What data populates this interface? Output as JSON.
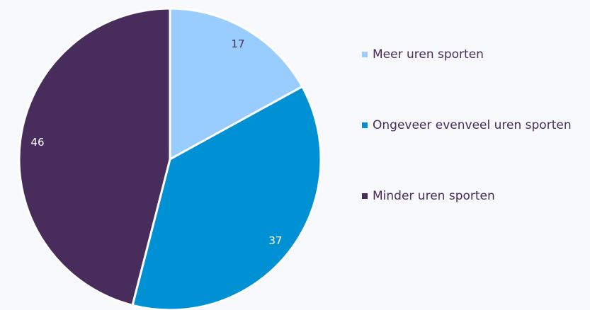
{
  "chart_data": {
    "type": "pie",
    "categories": [
      "Meer uren sporten",
      "Ongeveer evenveel uren sporten",
      "Minder uren sporten"
    ],
    "values": [
      17,
      37,
      46
    ],
    "colors": [
      "#99ccff",
      "#0090d4",
      "#472c5c"
    ],
    "legend": "right"
  }
}
